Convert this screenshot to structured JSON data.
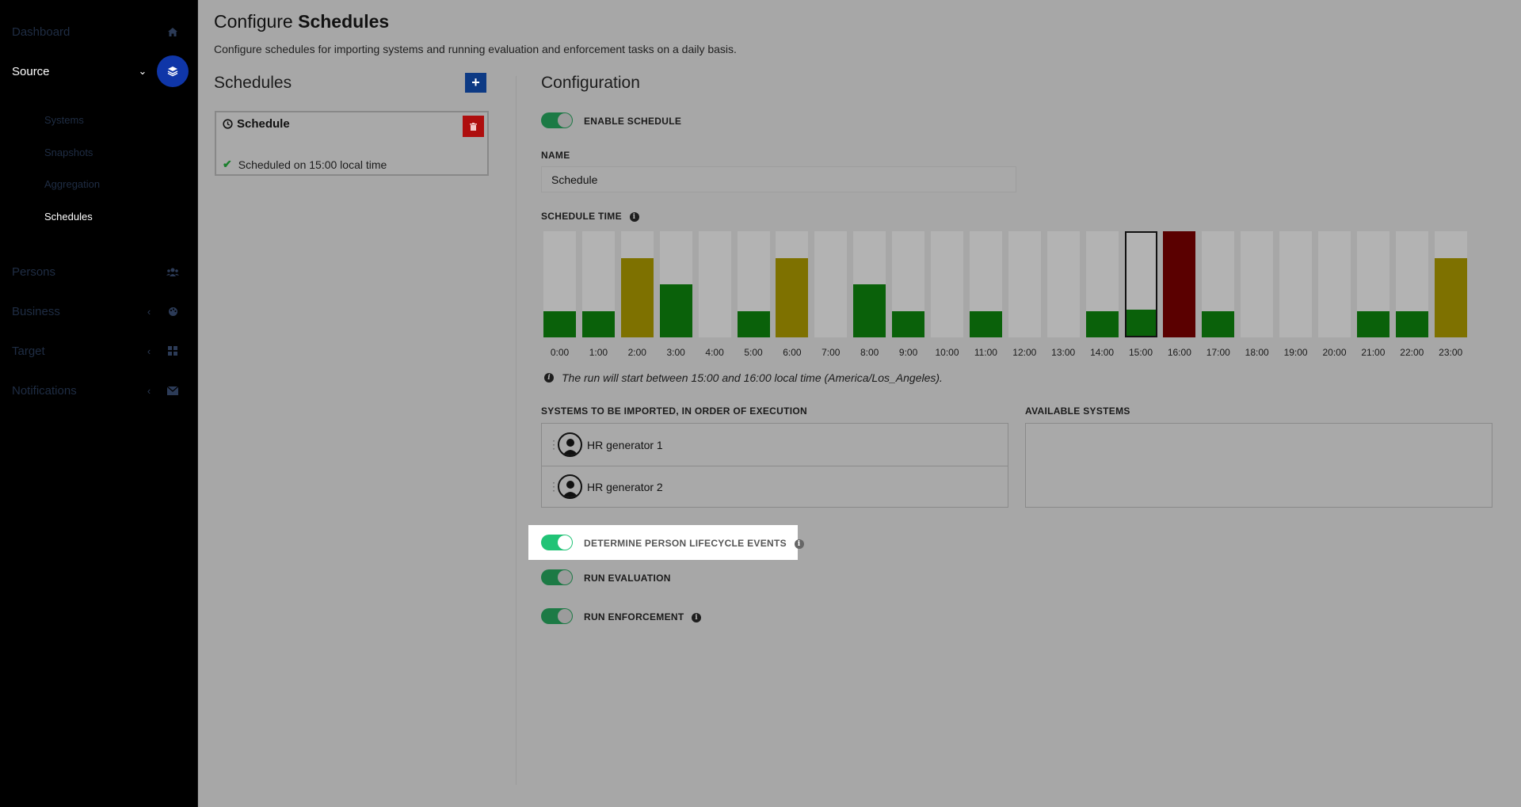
{
  "sidebar": {
    "items": [
      {
        "label": "Dashboard",
        "icon": "home-icon"
      },
      {
        "label": "Source",
        "icon": "layers-icon",
        "chevron": "⌄"
      },
      {
        "label": "Persons",
        "icon": "users-icon"
      },
      {
        "label": "Business",
        "icon": "palette-icon",
        "chevron": "‹"
      },
      {
        "label": "Target",
        "icon": "grid-icon",
        "chevron": "‹"
      },
      {
        "label": "Notifications",
        "icon": "envelope-icon",
        "chevron": "‹"
      }
    ],
    "source_subitems": [
      "Systems",
      "Snapshots",
      "Aggregation",
      "Schedules"
    ]
  },
  "page": {
    "title_prefix": "Configure",
    "title_bold": "Schedules",
    "subtitle": "Configure schedules for importing systems and running evaluation and enforcement tasks on a daily basis."
  },
  "schedules_panel": {
    "heading": "Schedules",
    "add_label": "+",
    "card": {
      "name": "Schedule",
      "status": "Scheduled on 15:00 local time"
    }
  },
  "config": {
    "heading": "Configuration",
    "enable_label": "ENABLE SCHEDULE",
    "name_label": "NAME",
    "name_value": "Schedule",
    "schedule_time_label": "SCHEDULE TIME",
    "hours": [
      "0:00",
      "1:00",
      "2:00",
      "3:00",
      "4:00",
      "5:00",
      "6:00",
      "7:00",
      "8:00",
      "9:00",
      "10:00",
      "11:00",
      "12:00",
      "13:00",
      "14:00",
      "15:00",
      "16:00",
      "17:00",
      "18:00",
      "19:00",
      "20:00",
      "21:00",
      "22:00",
      "23:00"
    ],
    "hour_load": [
      1,
      1,
      3,
      2,
      0,
      1,
      3,
      0,
      2,
      1,
      0,
      1,
      0,
      0,
      1,
      1,
      4,
      1,
      0,
      0,
      0,
      1,
      1,
      3
    ],
    "selected_hour": "15:00",
    "colors": {
      "low": "#0a610a",
      "mid": "#0a610a",
      "high": "#7e7100",
      "full": "#5a0000",
      "empty": "#b3b3b3"
    },
    "run_note": "The run will start between 15:00 and 16:00 local time (America/Los_Angeles).",
    "systems_label": "SYSTEMS TO BE IMPORTED, IN ORDER OF EXECUTION",
    "systems": [
      "HR generator 1",
      "HR generator 2"
    ],
    "available_label": "AVAILABLE SYSTEMS",
    "lifecycle_label": "DETERMINE PERSON LIFECYCLE EVENTS",
    "evaluation_label": "RUN EVALUATION",
    "enforcement_label": "RUN ENFORCEMENT"
  }
}
